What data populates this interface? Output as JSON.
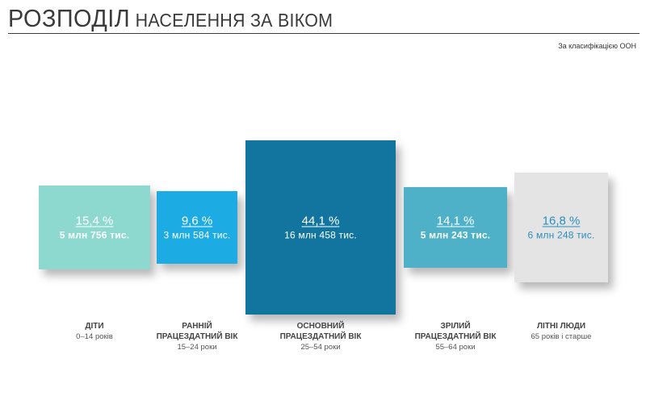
{
  "header": {
    "title_main": "РОЗПОДІЛ",
    "title_rest": "НАСЕЛЕННЯ ЗА ВІКОМ",
    "source_note": "За класифікацією ООН"
  },
  "chart_data": {
    "type": "bar",
    "title": "РОЗПОДІЛ НАСЕЛЕННЯ ЗА ВІКОМ",
    "categories": [
      "ДІТИ",
      "РАННІЙ ПРАЦЕЗДАТНИЙ ВІК",
      "ОСНОВНИЙ ПРАЦЕЗДАТНИЙ ВІК",
      "ЗРІЛИЙ ПРАЦЕЗДАТНИЙ ВІК",
      "ЛІТНІ ЛЮДИ"
    ],
    "age_ranges": [
      "0–14 років",
      "15–24 роки",
      "25–54 роки",
      "55–64 роки",
      "65 років і старше"
    ],
    "values": [
      15.4,
      9.6,
      44.1,
      14.1,
      16.8
    ],
    "value_labels": [
      "15,4 %",
      "9,6 %",
      "44,1 %",
      "14,1 %",
      "16,8 %"
    ],
    "absolute_labels": [
      "5 млн 756 тис.",
      "3 млн 584 тис.",
      "16 млн 458 тис.",
      "5 млн 243 тис.",
      "6 млн 248 тис."
    ],
    "colors": [
      "#8dd9cf",
      "#1cace3",
      "#1275a0",
      "#4eb1c8",
      "#e4e4e4"
    ],
    "text_colors": [
      "#ffffff",
      "#ffffff",
      "#ffffff",
      "#ffffff",
      "#2a8fbd"
    ],
    "unit": "%"
  }
}
